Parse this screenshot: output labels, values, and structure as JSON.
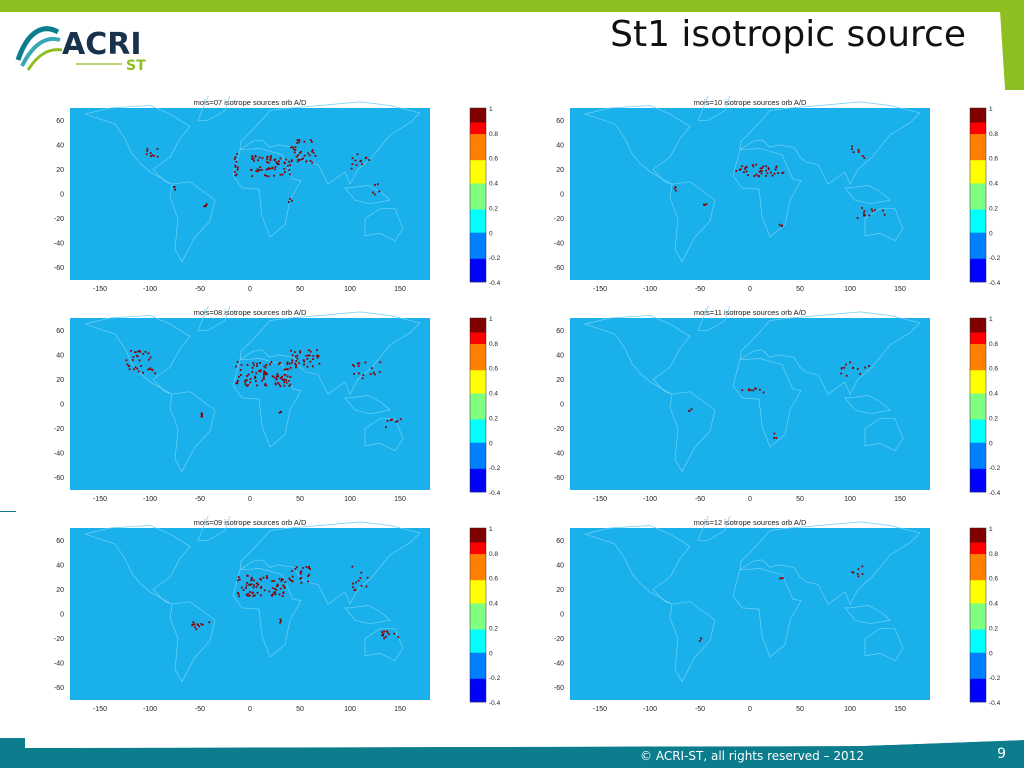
{
  "slide": {
    "title": "St1 isotropic source",
    "logo_text": "ACRI",
    "logo_sub": "ST",
    "footer": "© ACRI-ST, all rights reserved – 2012",
    "page_number": "9",
    "colors": {
      "accent_green": "#8cbf1f",
      "footer_teal": "#0b7d8c",
      "map_bg": "#1ab0ec",
      "coast": "#6ed0f5",
      "source": "#8b0000"
    }
  },
  "chart_data": [
    {
      "type": "heatmap",
      "title": "mois=07 isotrope sources orb A/D",
      "xticks": [
        "-150",
        "-100",
        "-50",
        "0",
        "50",
        "100",
        "150"
      ],
      "yticks": [
        "60",
        "40",
        "20",
        "0",
        "-20",
        "-40",
        "-60"
      ],
      "xlim": [
        -180,
        180
      ],
      "ylim": [
        -70,
        70
      ],
      "colorbar": {
        "min": -0.4,
        "max": 1,
        "ticks": [
          "1",
          "0.8",
          "0.6",
          "0.4",
          "0.2",
          "0",
          "-0.2",
          "-0.4"
        ]
      },
      "source_regions": [
        {
          "lon": [
            -105,
            -92
          ],
          "lat": [
            30,
            38
          ],
          "density": 0.6
        },
        {
          "lon": -75,
          "lat": 5,
          "density": 0.3
        },
        {
          "lon": -45,
          "lat": -8,
          "density": 0.5
        },
        {
          "lon": -15,
          "lat": [
            15,
            35
          ],
          "density": 0.9
        },
        {
          "lon": [
            0,
            40
          ],
          "lat": [
            15,
            32
          ],
          "density": 1.0
        },
        {
          "lon": [
            40,
            65
          ],
          "lat": [
            25,
            45
          ],
          "density": 0.8
        },
        {
          "lon": [
            100,
            120
          ],
          "lat": [
            20,
            35
          ],
          "density": 0.4
        },
        {
          "lon": [
            120,
            130
          ],
          "lat": [
            0,
            10
          ],
          "density": 0.4
        },
        {
          "lon": 40,
          "lat": -5,
          "density": 0.2
        }
      ]
    },
    {
      "type": "heatmap",
      "title": "mois=10 isotrope sources orb A/D",
      "xticks": [
        "-150",
        "-100",
        "-50",
        "0",
        "50",
        "100",
        "150"
      ],
      "yticks": [
        "60",
        "40",
        "20",
        "0",
        "-20",
        "-40",
        "-60"
      ],
      "xlim": [
        -180,
        180
      ],
      "ylim": [
        -70,
        70
      ],
      "colorbar": {
        "min": -0.4,
        "max": 1,
        "ticks": [
          "1",
          "0.8",
          "0.6",
          "0.4",
          "0.2",
          "0",
          "-0.2",
          "-0.4"
        ]
      },
      "source_regions": [
        {
          "lon": [
            -15,
            35
          ],
          "lat": [
            15,
            25
          ],
          "density": 0.9
        },
        {
          "lon": -75,
          "lat": 5,
          "density": 0.3
        },
        {
          "lon": -45,
          "lat": -8,
          "density": 0.3
        },
        {
          "lon": [
            100,
            140
          ],
          "lat": [
            -20,
            -10
          ],
          "density": 0.3
        },
        {
          "lon": [
            100,
            120
          ],
          "lat": [
            30,
            40
          ],
          "density": 0.3
        },
        {
          "lon": 30,
          "lat": -25,
          "density": 0.2
        }
      ]
    },
    {
      "type": "heatmap",
      "title": "mois=08 isotrope sources orb A/D",
      "xticks": [
        "-150",
        "-100",
        "-50",
        "0",
        "50",
        "100",
        "150"
      ],
      "yticks": [
        "60",
        "40",
        "20",
        "0",
        "-20",
        "-40",
        "-60"
      ],
      "xlim": [
        -180,
        180
      ],
      "ylim": [
        -70,
        70
      ],
      "colorbar": {
        "min": -0.4,
        "max": 1,
        "ticks": [
          "1",
          "0.8",
          "0.6",
          "0.4",
          "0.2",
          "0",
          "-0.2",
          "-0.4"
        ]
      },
      "source_regions": [
        {
          "lon": [
            -125,
            -95
          ],
          "lat": [
            25,
            45
          ],
          "density": 0.6
        },
        {
          "lon": -50,
          "lat": -8,
          "density": 0.6
        },
        {
          "lon": [
            -15,
            40
          ],
          "lat": [
            15,
            35
          ],
          "density": 1.0
        },
        {
          "lon": [
            40,
            70
          ],
          "lat": [
            30,
            45
          ],
          "density": 0.8
        },
        {
          "lon": [
            100,
            130
          ],
          "lat": [
            20,
            35
          ],
          "density": 0.4
        },
        {
          "lon": [
            130,
            150
          ],
          "lat": [
            -20,
            -10
          ],
          "density": 0.4
        },
        {
          "lon": 30,
          "lat": -5,
          "density": 0.3
        }
      ]
    },
    {
      "type": "heatmap",
      "title": "mois=11 isotrope sources orb A/D",
      "xticks": [
        "-150",
        "-100",
        "-50",
        "0",
        "50",
        "100",
        "150"
      ],
      "yticks": [
        "60",
        "40",
        "20",
        "0",
        "-20",
        "-40",
        "-60"
      ],
      "xlim": [
        -180,
        180
      ],
      "ylim": [
        -70,
        70
      ],
      "colorbar": {
        "min": -0.4,
        "max": 1,
        "ticks": [
          "1",
          "0.8",
          "0.6",
          "0.4",
          "0.2",
          "0",
          "-0.2",
          "-0.4"
        ]
      },
      "source_regions": [
        {
          "lon": [
            -10,
            15
          ],
          "lat": [
            10,
            15
          ],
          "density": 0.6
        },
        {
          "lon": [
            90,
            120
          ],
          "lat": [
            20,
            35
          ],
          "density": 0.3
        },
        {
          "lon": 25,
          "lat": -25,
          "density": 0.2
        },
        {
          "lon": -60,
          "lat": -5,
          "density": 0.2
        }
      ]
    },
    {
      "type": "heatmap",
      "title": "mois=09 isotrope sources orb A/D",
      "xticks": [
        "-150",
        "-100",
        "-50",
        "0",
        "50",
        "100",
        "150"
      ],
      "yticks": [
        "60",
        "40",
        "20",
        "0",
        "-20",
        "-40",
        "-60"
      ],
      "xlim": [
        -180,
        180
      ],
      "ylim": [
        -70,
        70
      ],
      "colorbar": {
        "min": -0.4,
        "max": 1,
        "ticks": [
          "1",
          "0.8",
          "0.6",
          "0.4",
          "0.2",
          "0",
          "-0.2",
          "-0.4"
        ]
      },
      "source_regions": [
        {
          "lon": [
            -15,
            35
          ],
          "lat": [
            15,
            32
          ],
          "density": 1.0
        },
        {
          "lon": [
            35,
            60
          ],
          "lat": [
            25,
            40
          ],
          "density": 0.6
        },
        {
          "lon": [
            -60,
            -40
          ],
          "lat": [
            -12,
            -5
          ],
          "density": 0.7
        },
        {
          "lon": [
            130,
            150
          ],
          "lat": [
            -20,
            -12
          ],
          "density": 0.6
        },
        {
          "lon": [
            100,
            120
          ],
          "lat": [
            20,
            40
          ],
          "density": 0.3
        },
        {
          "lon": 30,
          "lat": -5,
          "density": 0.3
        }
      ]
    },
    {
      "type": "heatmap",
      "title": "mois=12 isotrope sources orb A/D",
      "xticks": [
        "-150",
        "-100",
        "-50",
        "0",
        "50",
        "100",
        "150"
      ],
      "yticks": [
        "60",
        "40",
        "20",
        "0",
        "-20",
        "-40",
        "-60"
      ],
      "xlim": [
        -180,
        180
      ],
      "ylim": [
        -70,
        70
      ],
      "colorbar": {
        "min": -0.4,
        "max": 1,
        "ticks": [
          "1",
          "0.8",
          "0.6",
          "0.4",
          "0.2",
          "0",
          "-0.2",
          "-0.4"
        ]
      },
      "source_regions": [
        {
          "lon": [
            100,
            120
          ],
          "lat": [
            30,
            40
          ],
          "density": 0.3
        },
        {
          "lon": 30,
          "lat": 30,
          "density": 0.15
        },
        {
          "lon": -50,
          "lat": -20,
          "density": 0.1
        }
      ]
    }
  ]
}
